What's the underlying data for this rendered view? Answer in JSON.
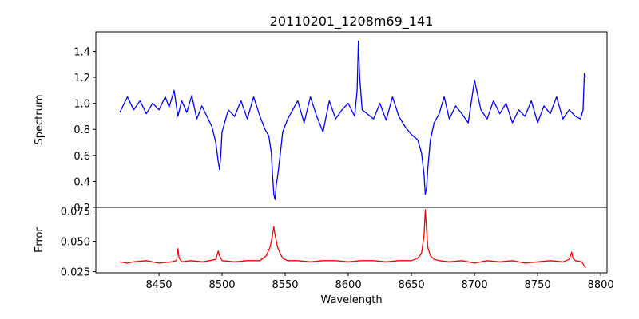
{
  "chart_data": [
    {
      "type": "line",
      "title": "20110201_1208m69_141",
      "ylabel": "Spectrum",
      "xlabel": "",
      "xlim": [
        8400,
        8805
      ],
      "ylim": [
        0.2,
        1.55
      ],
      "yticks": [
        "0.2",
        "0.4",
        "0.6",
        "0.8",
        "1.0",
        "1.2",
        "1.4"
      ],
      "series": [
        {
          "color": "#0000ff",
          "x": [
            8419,
            8425,
            8430,
            8435,
            8440,
            8445,
            8450,
            8455,
            8458,
            8462,
            8465,
            8468,
            8472,
            8476,
            8480,
            8484,
            8488,
            8492,
            8495,
            8497,
            8498,
            8499,
            8500,
            8502,
            8505,
            8510,
            8515,
            8520,
            8525,
            8530,
            8534,
            8537,
            8539,
            8540,
            8541,
            8542,
            8543,
            8544,
            8546,
            8548,
            8552,
            8556,
            8560,
            8565,
            8570,
            8575,
            8580,
            8585,
            8590,
            8595,
            8600,
            8605,
            8607,
            8608,
            8609,
            8611,
            8615,
            8620,
            8625,
            8630,
            8635,
            8640,
            8645,
            8650,
            8655,
            8658,
            8660,
            8661,
            8662,
            8663,
            8665,
            8668,
            8672,
            8676,
            8680,
            8685,
            8690,
            8695,
            8700,
            8705,
            8710,
            8715,
            8720,
            8725,
            8730,
            8735,
            8740,
            8745,
            8750,
            8755,
            8760,
            8765,
            8770,
            8775,
            8780,
            8784,
            8786,
            8787,
            8788
          ],
          "y": [
            0.93,
            1.05,
            0.95,
            1.02,
            0.92,
            1.0,
            0.95,
            1.05,
            0.97,
            1.1,
            0.9,
            1.02,
            0.93,
            1.06,
            0.88,
            0.98,
            0.9,
            0.82,
            0.7,
            0.55,
            0.49,
            0.6,
            0.78,
            0.85,
            0.95,
            0.9,
            1.02,
            0.88,
            1.05,
            0.9,
            0.8,
            0.75,
            0.62,
            0.45,
            0.3,
            0.26,
            0.38,
            0.44,
            0.6,
            0.78,
            0.88,
            0.95,
            1.02,
            0.85,
            1.05,
            0.9,
            0.78,
            1.02,
            0.88,
            0.95,
            1.0,
            0.9,
            1.1,
            1.48,
            1.2,
            0.95,
            0.92,
            0.88,
            1.0,
            0.87,
            1.05,
            0.9,
            0.82,
            0.76,
            0.72,
            0.62,
            0.45,
            0.3,
            0.35,
            0.5,
            0.72,
            0.85,
            0.92,
            1.05,
            0.88,
            0.98,
            0.92,
            0.85,
            1.18,
            0.95,
            0.88,
            1.02,
            0.92,
            1.0,
            0.85,
            0.95,
            0.9,
            1.02,
            0.85,
            0.98,
            0.92,
            1.05,
            0.88,
            0.95,
            0.9,
            0.88,
            0.95,
            1.23,
            1.2
          ]
        }
      ]
    },
    {
      "type": "line",
      "title": "",
      "ylabel": "Error",
      "xlabel": "Wavelength",
      "xlim": [
        8400,
        8805
      ],
      "ylim": [
        0.024,
        0.078
      ],
      "yticks": [
        "0.025",
        "0.050",
        "0.075"
      ],
      "xticks": [
        "8450",
        "8500",
        "8550",
        "8600",
        "8650",
        "8700",
        "8750",
        "8800"
      ],
      "series": [
        {
          "color": "#ff0000",
          "x": [
            8419,
            8425,
            8430,
            8440,
            8450,
            8460,
            8464,
            8465,
            8466,
            8468,
            8475,
            8485,
            8495,
            8497,
            8498,
            8500,
            8510,
            8520,
            8530,
            8535,
            8538,
            8540,
            8541,
            8542,
            8543,
            8544,
            8546,
            8548,
            8552,
            8560,
            8570,
            8580,
            8590,
            8600,
            8610,
            8620,
            8630,
            8640,
            8650,
            8655,
            8658,
            8660,
            8661,
            8662,
            8663,
            8665,
            8668,
            8672,
            8680,
            8690,
            8700,
            8710,
            8720,
            8730,
            8740,
            8750,
            8760,
            8770,
            8775,
            8777,
            8778,
            8780,
            8785,
            8788
          ],
          "y": [
            0.033,
            0.032,
            0.033,
            0.034,
            0.032,
            0.033,
            0.034,
            0.044,
            0.036,
            0.033,
            0.034,
            0.033,
            0.035,
            0.042,
            0.038,
            0.034,
            0.033,
            0.034,
            0.034,
            0.038,
            0.045,
            0.055,
            0.062,
            0.055,
            0.05,
            0.045,
            0.04,
            0.036,
            0.034,
            0.034,
            0.033,
            0.034,
            0.034,
            0.033,
            0.034,
            0.034,
            0.033,
            0.034,
            0.034,
            0.036,
            0.04,
            0.055,
            0.076,
            0.06,
            0.045,
            0.038,
            0.035,
            0.034,
            0.033,
            0.034,
            0.032,
            0.034,
            0.033,
            0.034,
            0.032,
            0.033,
            0.034,
            0.033,
            0.035,
            0.041,
            0.036,
            0.034,
            0.033,
            0.028
          ]
        }
      ]
    }
  ]
}
